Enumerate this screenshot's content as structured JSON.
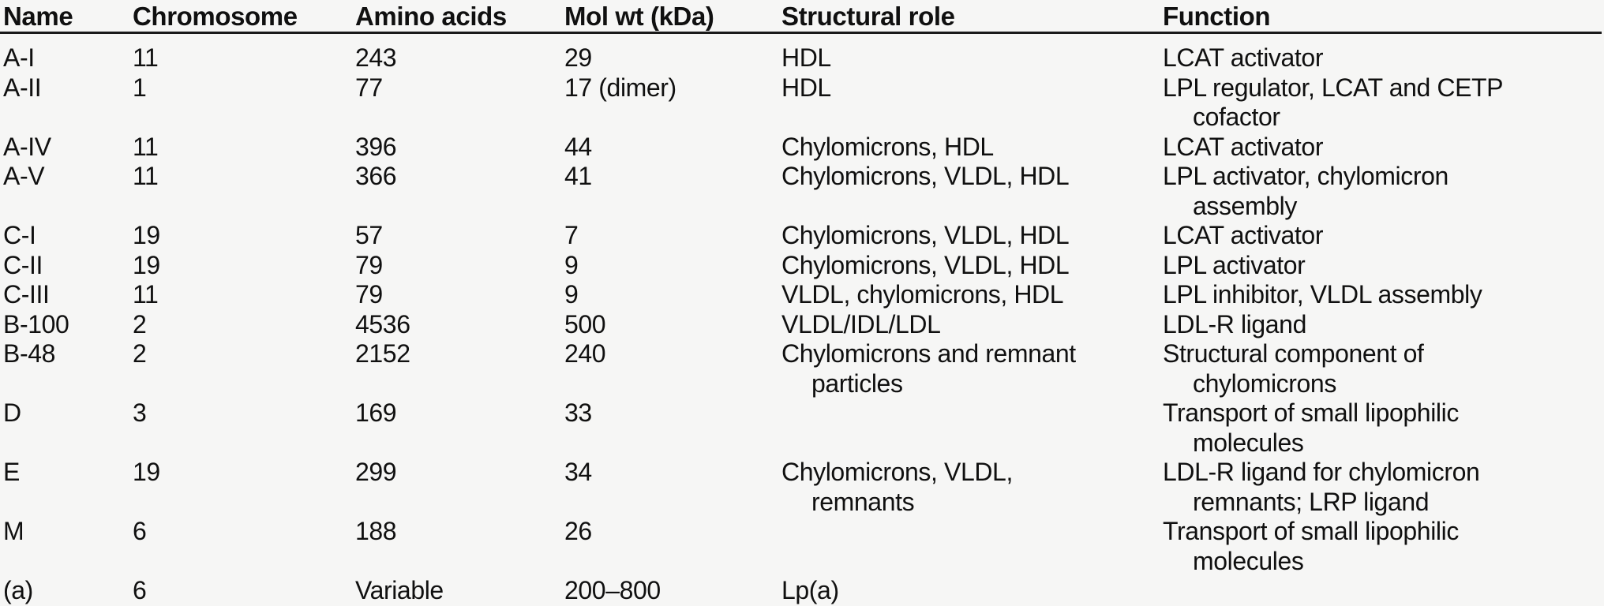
{
  "colors": {
    "background": "#f6f6f5",
    "text": "#101010",
    "rule": "#1a1a1a"
  },
  "table": {
    "columns": [
      {
        "key": "name",
        "label": "Name"
      },
      {
        "key": "chromosome",
        "label": "Chromosome"
      },
      {
        "key": "amino_acids",
        "label": "Amino acids"
      },
      {
        "key": "mol_wt",
        "label": "Mol wt (kDa)"
      },
      {
        "key": "structural_role",
        "label": "Structural role"
      },
      {
        "key": "function",
        "label": "Function"
      }
    ],
    "rows": [
      {
        "name": [
          "A-I"
        ],
        "chromosome": [
          "11"
        ],
        "amino_acids": [
          "243"
        ],
        "mol_wt": [
          "29"
        ],
        "structural_role": [
          "HDL"
        ],
        "function": [
          "LCAT activator"
        ]
      },
      {
        "name": [
          "A-II"
        ],
        "chromosome": [
          "1"
        ],
        "amino_acids": [
          "77"
        ],
        "mol_wt": [
          "17 (dimer)"
        ],
        "structural_role": [
          "HDL"
        ],
        "function": [
          "LPL regulator, LCAT and CETP",
          "cofactor"
        ]
      },
      {
        "name": [
          "A-IV"
        ],
        "chromosome": [
          "11"
        ],
        "amino_acids": [
          "396"
        ],
        "mol_wt": [
          "44"
        ],
        "structural_role": [
          "Chylomicrons, HDL"
        ],
        "function": [
          "LCAT activator"
        ]
      },
      {
        "name": [
          "A-V"
        ],
        "chromosome": [
          "11"
        ],
        "amino_acids": [
          "366"
        ],
        "mol_wt": [
          "41"
        ],
        "structural_role": [
          "Chylomicrons, VLDL, HDL"
        ],
        "function": [
          "LPL activator, chylomicron",
          "assembly"
        ]
      },
      {
        "name": [
          "C-I"
        ],
        "chromosome": [
          "19"
        ],
        "amino_acids": [
          "57"
        ],
        "mol_wt": [
          "7"
        ],
        "structural_role": [
          "Chylomicrons, VLDL, HDL"
        ],
        "function": [
          "LCAT activator"
        ]
      },
      {
        "name": [
          "C-II"
        ],
        "chromosome": [
          "19"
        ],
        "amino_acids": [
          "79"
        ],
        "mol_wt": [
          "9"
        ],
        "structural_role": [
          "Chylomicrons, VLDL, HDL"
        ],
        "function": [
          "LPL activator"
        ]
      },
      {
        "name": [
          "C-III"
        ],
        "chromosome": [
          "11"
        ],
        "amino_acids": [
          "79"
        ],
        "mol_wt": [
          "9"
        ],
        "structural_role": [
          "VLDL, chylomicrons, HDL"
        ],
        "function": [
          "LPL inhibitor, VLDL assembly"
        ]
      },
      {
        "name": [
          "B-100"
        ],
        "chromosome": [
          "2"
        ],
        "amino_acids": [
          "4536"
        ],
        "mol_wt": [
          "500"
        ],
        "structural_role": [
          "VLDL/IDL/LDL"
        ],
        "function": [
          "LDL-R ligand"
        ]
      },
      {
        "name": [
          "B-48"
        ],
        "chromosome": [
          "2"
        ],
        "amino_acids": [
          "2152"
        ],
        "mol_wt": [
          "240"
        ],
        "structural_role": [
          "Chylomicrons and remnant",
          "particles"
        ],
        "function": [
          "Structural component of",
          "chylomicrons"
        ]
      },
      {
        "name": [
          "D"
        ],
        "chromosome": [
          "3"
        ],
        "amino_acids": [
          "169"
        ],
        "mol_wt": [
          "33"
        ],
        "structural_role": [],
        "function": [
          "Transport of small lipophilic",
          "molecules"
        ]
      },
      {
        "name": [
          "E"
        ],
        "chromosome": [
          "19"
        ],
        "amino_acids": [
          "299"
        ],
        "mol_wt": [
          "34"
        ],
        "structural_role": [
          "Chylomicrons, VLDL,",
          "remnants"
        ],
        "function": [
          "LDL-R ligand for chylomicron",
          "remnants; LRP ligand"
        ]
      },
      {
        "name": [
          "M"
        ],
        "chromosome": [
          "6"
        ],
        "amino_acids": [
          "188"
        ],
        "mol_wt": [
          "26"
        ],
        "structural_role": [],
        "function": [
          "Transport of small lipophilic",
          "molecules"
        ]
      },
      {
        "name": [
          "(a)"
        ],
        "chromosome": [
          "6"
        ],
        "amino_acids": [
          "Variable"
        ],
        "mol_wt": [
          "200–800"
        ],
        "structural_role": [
          "Lp(a)"
        ],
        "function": []
      }
    ]
  }
}
